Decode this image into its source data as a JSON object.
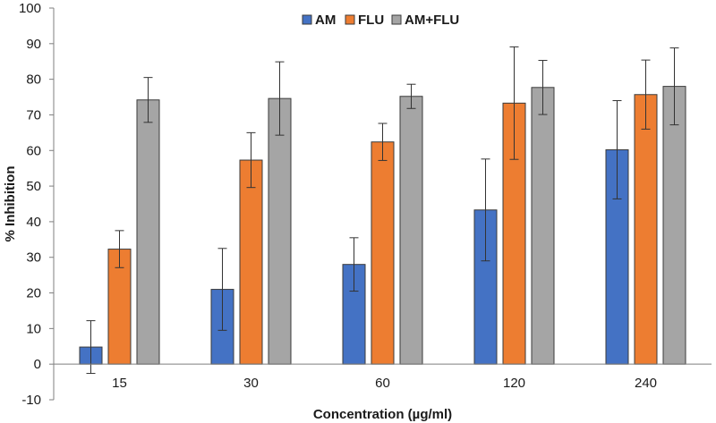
{
  "chart_data": {
    "type": "bar",
    "title": "",
    "xlabel": "Concentration (µg/ml)",
    "ylabel": "% Inhibition",
    "ylim": [
      -10,
      100
    ],
    "yticks": [
      -10,
      0,
      10,
      20,
      30,
      40,
      50,
      60,
      70,
      80,
      90,
      100
    ],
    "grid": false,
    "legend_position": "top-center",
    "categories": [
      "15",
      "30",
      "60",
      "120",
      "240"
    ],
    "series": [
      {
        "name": "AM",
        "color": "#4472C4",
        "values": [
          4.8,
          21.0,
          28.0,
          43.3,
          60.2
        ],
        "errors": [
          7.4,
          11.5,
          7.5,
          14.3,
          13.8
        ]
      },
      {
        "name": "FLU",
        "color": "#ED7D31",
        "values": [
          32.3,
          57.3,
          62.4,
          73.3,
          75.7
        ],
        "errors": [
          5.2,
          7.7,
          5.2,
          15.8,
          9.7
        ]
      },
      {
        "name": "AM+FLU",
        "color": "#A5A5A5",
        "values": [
          74.2,
          74.6,
          75.2,
          77.7,
          78.0
        ],
        "errors": [
          6.3,
          10.3,
          3.4,
          7.6,
          10.8
        ]
      }
    ]
  }
}
